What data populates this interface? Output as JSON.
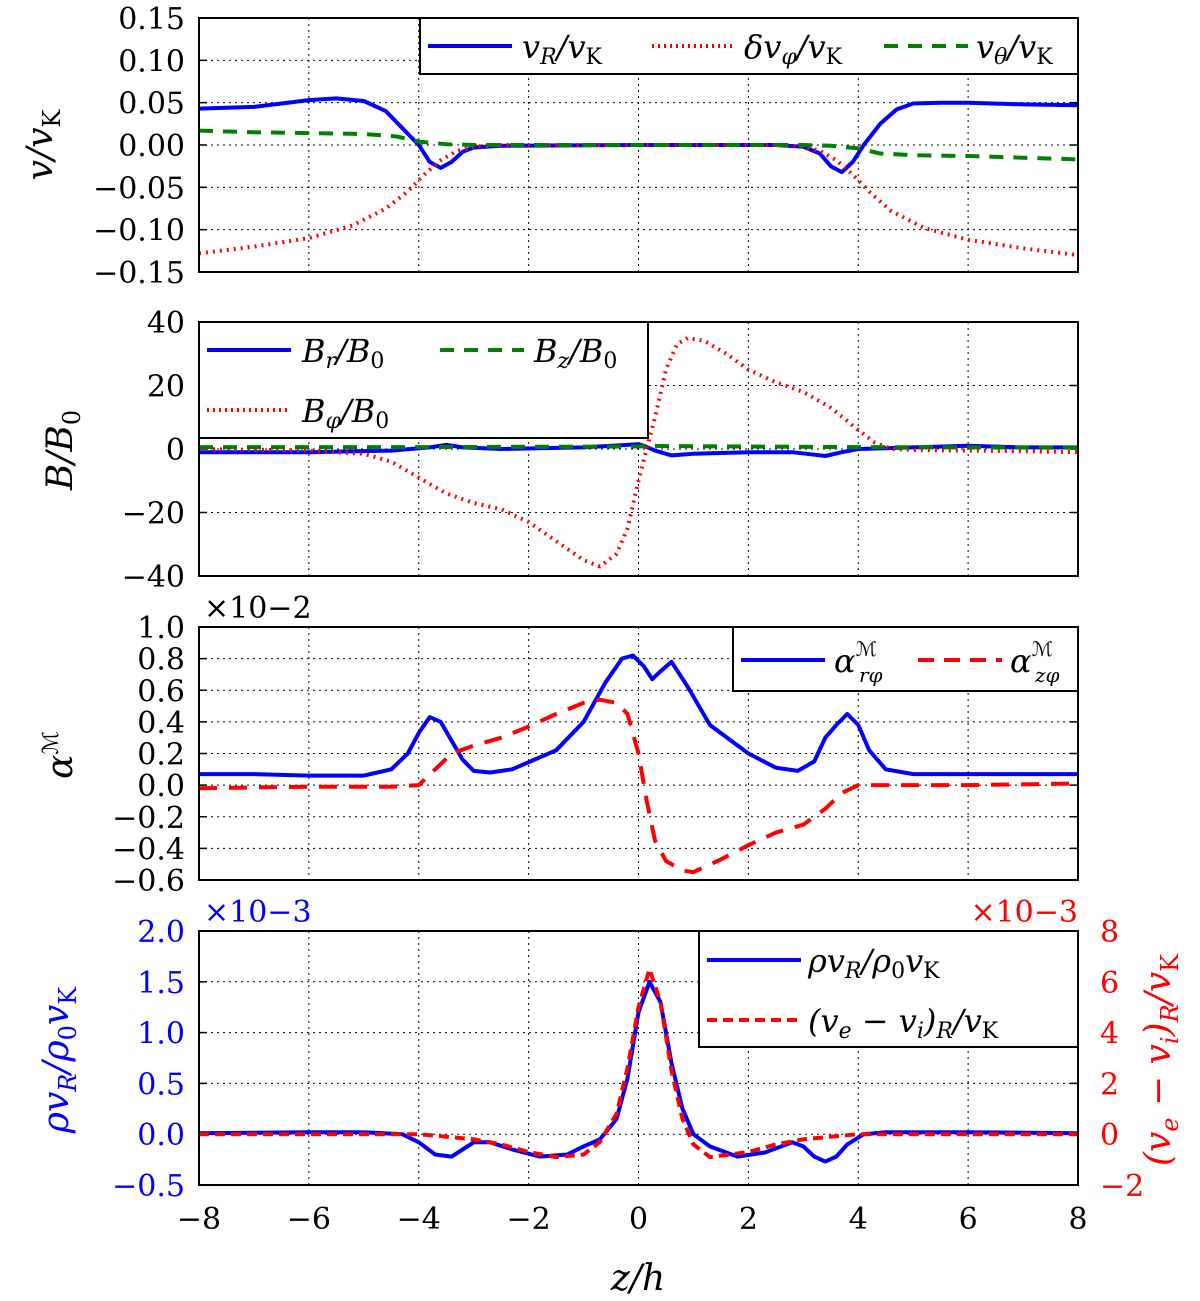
{
  "chart_data": [
    {
      "type": "line",
      "ylabel": "v/vK",
      "xlim": [
        -8,
        8
      ],
      "ylim": [
        -0.15,
        0.15
      ],
      "yticks": [
        "0.15",
        "0.10",
        "0.05",
        "0.00",
        "−0.05",
        "−0.10",
        "−0.15"
      ],
      "ytick_values": [
        0.15,
        0.1,
        0.05,
        0.0,
        -0.05,
        -0.1,
        -0.15
      ],
      "grid": true,
      "legend": "top-right",
      "series": [
        {
          "name": "vR/vK",
          "color": "#0000ff",
          "dash": "solid",
          "x": [
            -8,
            -7,
            -6,
            -5.5,
            -5,
            -4.6,
            -4.3,
            -4.0,
            -3.8,
            -3.6,
            -3.4,
            -3.2,
            -3.0,
            -2.5,
            0,
            2.5,
            3.0,
            3.3,
            3.5,
            3.7,
            3.9,
            4.1,
            4.4,
            4.7,
            5.0,
            5.5,
            6,
            7,
            8
          ],
          "y": [
            0.043,
            0.045,
            0.053,
            0.055,
            0.052,
            0.04,
            0.02,
            0.0,
            -0.02,
            -0.027,
            -0.02,
            -0.008,
            -0.003,
            -0.001,
            0.0,
            0.0,
            -0.002,
            -0.01,
            -0.025,
            -0.032,
            -0.02,
            0.0,
            0.025,
            0.042,
            0.049,
            0.05,
            0.05,
            0.048,
            0.047
          ]
        },
        {
          "name": "δvφ/vK",
          "color": "#ff0000",
          "dash": "dot",
          "x": [
            -8,
            -7,
            -6,
            -5.2,
            -4.6,
            -4.2,
            -3.9,
            -3.6,
            -3.3,
            -3.0,
            -2.5,
            0,
            2.5,
            3.0,
            3.3,
            3.6,
            3.9,
            4.2,
            4.6,
            5.2,
            6,
            7,
            8
          ],
          "y": [
            -0.128,
            -0.12,
            -0.11,
            -0.095,
            -0.075,
            -0.055,
            -0.035,
            -0.018,
            -0.007,
            -0.002,
            0.0,
            0.0,
            0.0,
            -0.002,
            -0.007,
            -0.018,
            -0.035,
            -0.055,
            -0.078,
            -0.098,
            -0.112,
            -0.122,
            -0.13
          ]
        },
        {
          "name": "vθ/vK",
          "color": "#008000",
          "dash": "dash",
          "x": [
            -8,
            -7,
            -6,
            -5,
            -4.4,
            -4.0,
            -3.5,
            -3.0,
            0,
            3.0,
            3.5,
            4.0,
            4.4,
            5,
            6,
            7,
            8
          ],
          "y": [
            0.017,
            0.015,
            0.014,
            0.013,
            0.01,
            0.004,
            0.001,
            0.0,
            0.0,
            0.0,
            -0.001,
            -0.004,
            -0.01,
            -0.012,
            -0.013,
            -0.015,
            -0.017
          ]
        }
      ]
    },
    {
      "type": "line",
      "ylabel": "B/B0",
      "xlim": [
        -8,
        8
      ],
      "ylim": [
        -40,
        40
      ],
      "yticks": [
        "40",
        "20",
        "0",
        "−20",
        "−40"
      ],
      "ytick_values": [
        40,
        20,
        0,
        -20,
        -40
      ],
      "grid": true,
      "legend": "top-left",
      "series": [
        {
          "name": "Br/B0",
          "color": "#0000ff",
          "dash": "solid",
          "x": [
            -8,
            -6,
            -4.5,
            -3.8,
            -3.5,
            -3.2,
            -2.5,
            -1,
            0,
            0.1,
            0.3,
            0.6,
            1,
            2,
            2.8,
            3.2,
            3.4,
            3.7,
            4,
            5,
            6,
            7,
            8
          ],
          "y": [
            -1,
            -1,
            -0.5,
            0.5,
            1.3,
            0.5,
            0.0,
            0.5,
            1.5,
            1.0,
            -0.5,
            -2,
            -1.5,
            -1,
            -1,
            -1.8,
            -2.2,
            -1,
            0,
            0.5,
            1,
            0.5,
            0.5
          ]
        },
        {
          "name": "Bφ/B0",
          "color": "#ff0000",
          "dash": "dot",
          "x": [
            -8,
            -6,
            -5,
            -4.5,
            -4.0,
            -3.5,
            -3.0,
            -2.5,
            -2.0,
            -1.5,
            -1.0,
            -0.7,
            -0.4,
            -0.2,
            0.0,
            0.15,
            0.3,
            0.5,
            0.7,
            0.9,
            1.2,
            1.6,
            2.0,
            2.5,
            3.0,
            3.5,
            4.0,
            4.3,
            4.6,
            5,
            6,
            7,
            8
          ],
          "y": [
            0,
            -0.5,
            -1.5,
            -4,
            -9,
            -14,
            -17,
            -19,
            -23,
            -29,
            -35,
            -37,
            -33,
            -25,
            -10,
            0,
            10,
            25,
            33,
            35,
            34,
            30,
            25,
            21,
            18,
            13,
            6,
            2,
            0,
            -0.3,
            -0.5,
            -0.7,
            -1.0
          ]
        },
        {
          "name": "Bz/B0",
          "color": "#008000",
          "dash": "dash",
          "x": [
            -8,
            -4,
            -2,
            0,
            0.2,
            0.5,
            2,
            4,
            6,
            8
          ],
          "y": [
            0.6,
            0.6,
            0.7,
            0.8,
            1.0,
            0.9,
            0.8,
            0.6,
            0.5,
            0.4
          ]
        }
      ]
    },
    {
      "type": "line",
      "ylabel": "αℳ",
      "multiplier": "×10−2",
      "xlim": [
        -8,
        8
      ],
      "ylim": [
        -0.6,
        1.0
      ],
      "yticks": [
        "1.0",
        "0.8",
        "0.6",
        "0.4",
        "0.2",
        "0.0",
        "−0.2",
        "−0.4",
        "−0.6"
      ],
      "ytick_values": [
        1.0,
        0.8,
        0.6,
        0.4,
        0.2,
        0.0,
        -0.2,
        -0.4,
        -0.6
      ],
      "grid": true,
      "legend": "top-right",
      "series": [
        {
          "name": "αℳrφ",
          "color": "#0000ff",
          "dash": "solid",
          "x": [
            -8,
            -7,
            -6,
            -5,
            -4.5,
            -4.2,
            -4.0,
            -3.8,
            -3.6,
            -3.4,
            -3.2,
            -3.0,
            -2.7,
            -2.3,
            -1.5,
            -1,
            -0.6,
            -0.3,
            -0.1,
            0.1,
            0.25,
            0.4,
            0.6,
            0.9,
            1.3,
            2,
            2.5,
            2.9,
            3.2,
            3.4,
            3.6,
            3.8,
            4.0,
            4.2,
            4.5,
            5,
            6,
            7,
            8
          ],
          "y": [
            0.07,
            0.07,
            0.06,
            0.06,
            0.1,
            0.2,
            0.33,
            0.43,
            0.4,
            0.28,
            0.16,
            0.09,
            0.08,
            0.1,
            0.22,
            0.4,
            0.65,
            0.8,
            0.82,
            0.75,
            0.67,
            0.72,
            0.78,
            0.62,
            0.38,
            0.2,
            0.11,
            0.09,
            0.15,
            0.3,
            0.38,
            0.45,
            0.38,
            0.22,
            0.1,
            0.07,
            0.07,
            0.07,
            0.07
          ]
        },
        {
          "name": "αℳzφ",
          "color": "#ff0000",
          "dash": "dash",
          "x": [
            -8,
            -6,
            -4.5,
            -4.0,
            -3.7,
            -3.4,
            -3.0,
            -2.5,
            -2,
            -1.5,
            -1,
            -0.7,
            -0.4,
            -0.2,
            0.0,
            0.15,
            0.3,
            0.5,
            0.8,
            1.0,
            1.5,
            2,
            2.5,
            3,
            3.4,
            3.7,
            4.0,
            4.5,
            6,
            8
          ],
          "y": [
            -0.02,
            -0.01,
            -0.01,
            0.0,
            0.1,
            0.2,
            0.25,
            0.3,
            0.37,
            0.45,
            0.52,
            0.54,
            0.52,
            0.45,
            0.2,
            -0.1,
            -0.35,
            -0.48,
            -0.54,
            -0.55,
            -0.47,
            -0.38,
            -0.3,
            -0.25,
            -0.15,
            -0.05,
            0.0,
            0.0,
            0.0,
            0.01
          ]
        }
      ]
    },
    {
      "type": "line",
      "ylabel": "ρvR/ρ0vK",
      "ylabel_right": "(ve − vi)R/vK",
      "xlabel": "z/h",
      "multiplier": "×10−3",
      "multiplier_right": "×10−3",
      "xlim": [
        -8,
        8
      ],
      "ylim": [
        -0.5,
        2.0
      ],
      "ylim_right": [
        -2,
        8
      ],
      "xticks": [
        "−8",
        "−6",
        "−4",
        "−2",
        "0",
        "2",
        "4",
        "6",
        "8"
      ],
      "xtick_values": [
        -8,
        -6,
        -4,
        -2,
        0,
        2,
        4,
        6,
        8
      ],
      "yticks": [
        "2.0",
        "1.5",
        "1.0",
        "0.5",
        "0.0",
        "−0.5"
      ],
      "ytick_values": [
        2.0,
        1.5,
        1.0,
        0.5,
        0.0,
        -0.5
      ],
      "yticks_right": [
        "8",
        "6",
        "4",
        "2",
        "0",
        "−2"
      ],
      "ytick_values_right": [
        8,
        6,
        4,
        2,
        0,
        -2
      ],
      "grid": true,
      "legend": "top-right",
      "series": [
        {
          "name": "ρvR/ρ0vK",
          "color": "#0000ff",
          "dash": "solid",
          "axis": "left",
          "x": [
            -8,
            -6,
            -5,
            -4.3,
            -4.0,
            -3.7,
            -3.4,
            -3.2,
            -3.0,
            -2.7,
            -2.3,
            -1.8,
            -1.3,
            -1,
            -0.7,
            -0.4,
            -0.2,
            0.0,
            0.2,
            0.4,
            0.6,
            0.8,
            1.0,
            1.3,
            1.8,
            2.3,
            2.8,
            3.0,
            3.2,
            3.4,
            3.6,
            3.8,
            4.1,
            4.5,
            6,
            8
          ],
          "y": [
            0.01,
            0.02,
            0.02,
            0.0,
            -0.08,
            -0.2,
            -0.22,
            -0.15,
            -0.08,
            -0.08,
            -0.15,
            -0.22,
            -0.2,
            -0.12,
            -0.05,
            0.15,
            0.55,
            1.2,
            1.5,
            1.3,
            0.7,
            0.25,
            0.0,
            -0.12,
            -0.22,
            -0.18,
            -0.08,
            -0.12,
            -0.22,
            -0.27,
            -0.22,
            -0.1,
            0.0,
            0.02,
            0.02,
            0.01
          ]
        },
        {
          "name": "(ve − vi)R/vK",
          "color": "#ff0000",
          "dash": "dash",
          "axis": "right",
          "x": [
            -8,
            -6,
            -4,
            -3.5,
            -3,
            -2.5,
            -2,
            -1.5,
            -1,
            -0.7,
            -0.4,
            -0.2,
            0.0,
            0.2,
            0.4,
            0.6,
            0.8,
            1.0,
            1.3,
            2,
            2.5,
            3,
            4,
            6,
            8
          ],
          "y": [
            0.0,
            0.0,
            0.0,
            -0.1,
            -0.2,
            -0.4,
            -0.7,
            -0.9,
            -0.8,
            -0.3,
            0.8,
            2.6,
            5.0,
            6.5,
            5.2,
            2.5,
            0.6,
            -0.4,
            -0.9,
            -0.7,
            -0.4,
            -0.2,
            0.0,
            0.0,
            0.0
          ]
        }
      ]
    }
  ]
}
